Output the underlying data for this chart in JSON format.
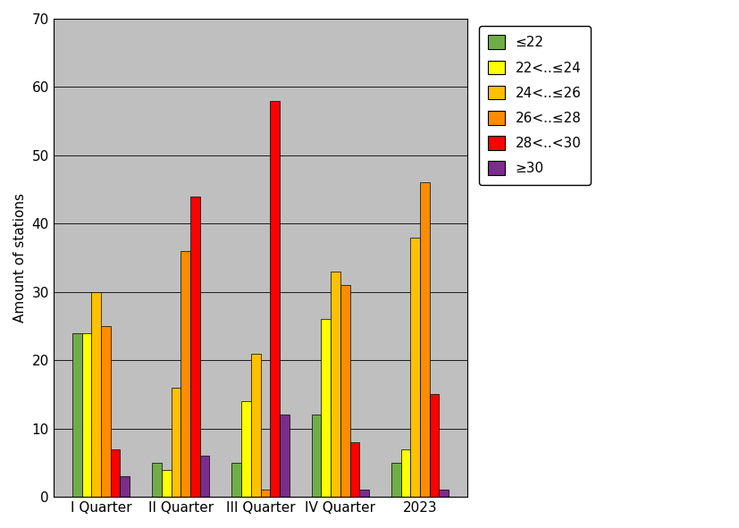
{
  "categories": [
    "I Quarter",
    "II Quarter",
    "III Quarter",
    "IV Quarter",
    "2023"
  ],
  "series": [
    {
      "label": "≤22",
      "color": "#70ad47",
      "values": [
        24,
        5,
        5,
        12,
        5
      ]
    },
    {
      "label": "22<..≤24",
      "color": "#ffff00",
      "values": [
        24,
        4,
        14,
        26,
        7
      ]
    },
    {
      "label": "24<..≤26",
      "color": "#ffc000",
      "values": [
        30,
        16,
        21,
        33,
        38
      ]
    },
    {
      "label": "26<..≤28",
      "color": "#ff8c00",
      "values": [
        25,
        36,
        1,
        31,
        46
      ]
    },
    {
      "label": "28<..<30",
      "color": "#ff0000",
      "values": [
        7,
        44,
        58,
        8,
        15
      ]
    },
    {
      "label": "≥30",
      "color": "#7b2d8b",
      "values": [
        3,
        6,
        12,
        1,
        1
      ]
    }
  ],
  "ylabel": "Amount of stations",
  "ylim": [
    0,
    70
  ],
  "yticks": [
    0,
    10,
    20,
    30,
    40,
    50,
    60,
    70
  ],
  "background_color": "#ffffff",
  "plot_bg_color": "#bfbfbf",
  "bar_edge_color": "#000000",
  "bar_edge_width": 0.5,
  "figsize": [
    8.27,
    5.91
  ],
  "dpi": 100
}
